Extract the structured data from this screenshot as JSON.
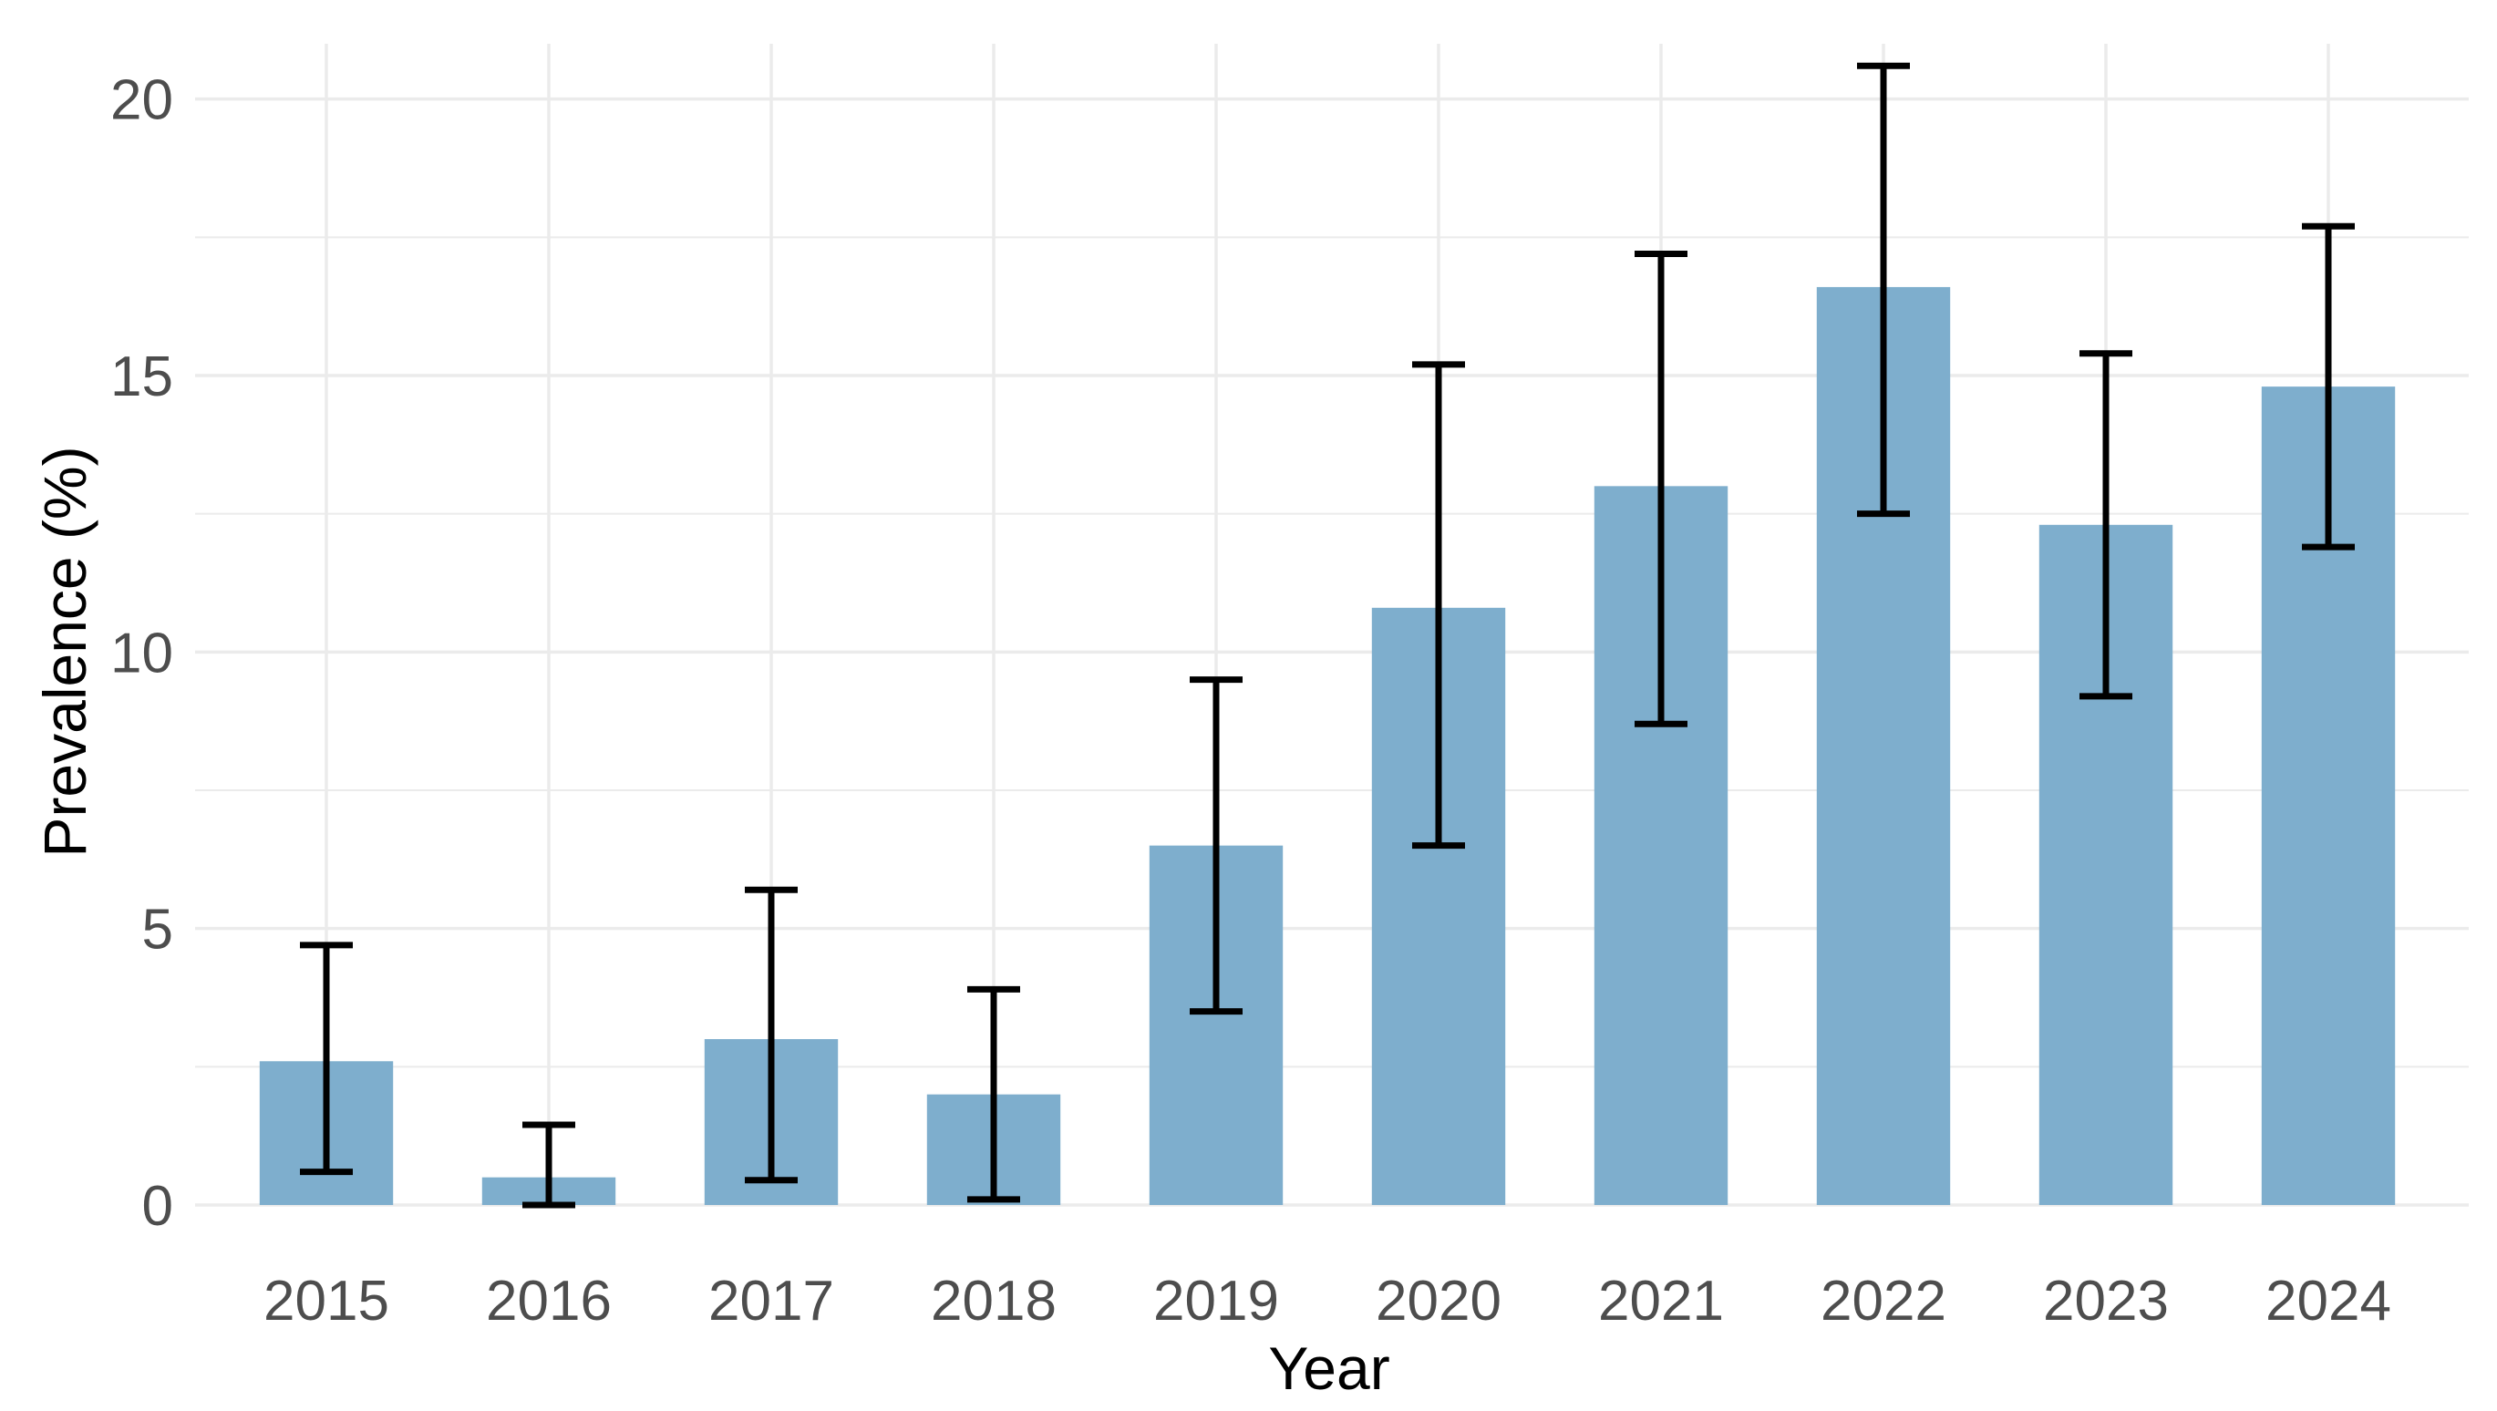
{
  "chart_data": {
    "type": "bar",
    "title": "",
    "xlabel": "Year",
    "ylabel": "Prevalence (%)",
    "categories": [
      "2015",
      "2016",
      "2017",
      "2018",
      "2019",
      "2020",
      "2021",
      "2022",
      "2023",
      "2024"
    ],
    "values": [
      2.6,
      0.5,
      3.0,
      2.0,
      6.5,
      10.8,
      13.0,
      16.6,
      12.3,
      14.8
    ],
    "error_lower": [
      0.6,
      0.0,
      0.45,
      0.1,
      3.5,
      6.5,
      8.7,
      12.5,
      9.2,
      11.9
    ],
    "error_upper": [
      4.7,
      1.45,
      5.7,
      3.9,
      9.5,
      15.2,
      17.2,
      20.6,
      15.4,
      17.7
    ],
    "ylim": [
      0,
      21
    ],
    "yticks": [
      0,
      5,
      10,
      15,
      20
    ],
    "y_tick_labels": [
      "0",
      "5",
      "10",
      "15",
      "20"
    ],
    "grid": true,
    "legend": "none",
    "colors": {
      "bar": "#7eaecd",
      "error_bar": "#000000",
      "grid": "#ebebeb",
      "tick_text": "#4d4d4d",
      "axis_title": "#000000"
    }
  }
}
